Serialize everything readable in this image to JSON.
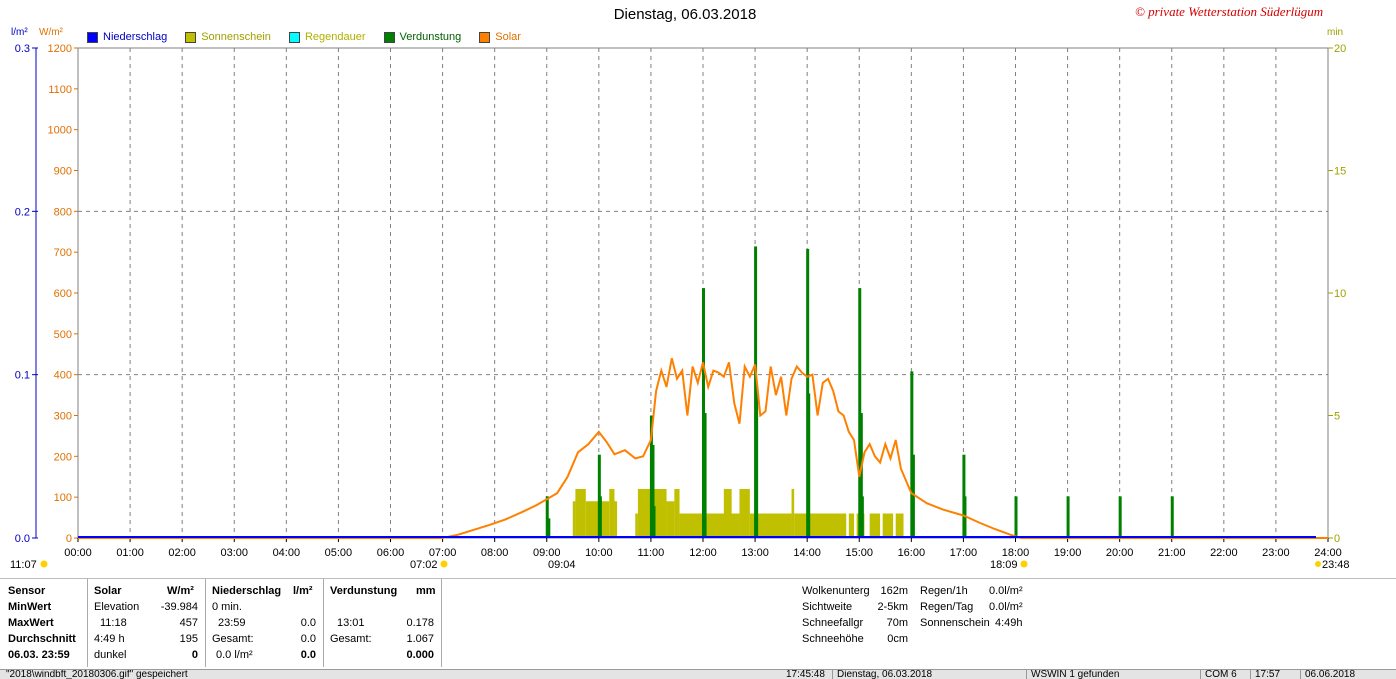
{
  "header": {
    "title": "Dienstag, 06.03.2018",
    "copyright": "© private Wetterstation Süderlügum",
    "unit_precip": "l/m²",
    "unit_solar": "W/m²",
    "unit_min": "min"
  },
  "legend": [
    {
      "label": "Niederschlag",
      "color": "#0000ff"
    },
    {
      "label": "Sonnenschein",
      "color": "#c0c000"
    },
    {
      "label": "Regendauer",
      "color": "#00ffff"
    },
    {
      "label": "Verdunstung",
      "color": "#008000"
    },
    {
      "label": "Solar",
      "color": "#ff8000"
    }
  ],
  "colors": {
    "solar": "#ff8000",
    "sun": "#c0c000",
    "evap": "#008000",
    "precip": "#0000ff",
    "grid": "#808080"
  },
  "chart_data": {
    "type": "bar",
    "x_labels": [
      "00:00",
      "01:00",
      "02:00",
      "03:00",
      "04:00",
      "05:00",
      "06:00",
      "07:00",
      "08:00",
      "09:00",
      "10:00",
      "11:00",
      "12:00",
      "13:00",
      "14:00",
      "15:00",
      "16:00",
      "17:00",
      "18:00",
      "19:00",
      "20:00",
      "21:00",
      "22:00",
      "23:00",
      "24:00"
    ],
    "xlim_hours": [
      0,
      24
    ],
    "axes": {
      "precip": {
        "ticks": [
          "0.0",
          "0.1",
          "0.2",
          "0.3"
        ],
        "ylim": [
          0,
          0.3
        ]
      },
      "solar": {
        "ticks": [
          "0",
          "100",
          "200",
          "300",
          "400",
          "500",
          "600",
          "700",
          "800",
          "900",
          "1000",
          "1100",
          "1200"
        ],
        "ylim": [
          0,
          1200
        ]
      },
      "minutes": {
        "ticks": [
          "0",
          "5",
          "10",
          "15",
          "20"
        ],
        "ylim": [
          0,
          20
        ]
      }
    },
    "markers": {
      "moon_left": "11:07",
      "sunrise": "07:02",
      "noon": "09:04",
      "sunset": "18:09",
      "moon_right": "23:48"
    },
    "solar_series": {
      "name": "Solar",
      "points": [
        [
          0,
          0
        ],
        [
          7.0,
          0
        ],
        [
          7.3,
          8
        ],
        [
          7.6,
          20
        ],
        [
          7.9,
          32
        ],
        [
          8.2,
          45
        ],
        [
          8.5,
          62
        ],
        [
          8.8,
          80
        ],
        [
          9.0,
          95
        ],
        [
          9.2,
          110
        ],
        [
          9.4,
          150
        ],
        [
          9.6,
          210
        ],
        [
          9.8,
          230
        ],
        [
          10.0,
          260
        ],
        [
          10.15,
          235
        ],
        [
          10.3,
          205
        ],
        [
          10.5,
          215
        ],
        [
          10.7,
          195
        ],
        [
          10.85,
          200
        ],
        [
          11.0,
          240
        ],
        [
          11.1,
          360
        ],
        [
          11.2,
          410
        ],
        [
          11.3,
          370
        ],
        [
          11.4,
          440
        ],
        [
          11.5,
          390
        ],
        [
          11.6,
          410
        ],
        [
          11.7,
          300
        ],
        [
          11.8,
          420
        ],
        [
          11.9,
          380
        ],
        [
          12.0,
          430
        ],
        [
          12.1,
          370
        ],
        [
          12.2,
          410
        ],
        [
          12.3,
          405
        ],
        [
          12.4,
          395
        ],
        [
          12.5,
          430
        ],
        [
          12.6,
          330
        ],
        [
          12.7,
          280
        ],
        [
          12.8,
          420
        ],
        [
          12.9,
          395
        ],
        [
          13.0,
          425
        ],
        [
          13.1,
          300
        ],
        [
          13.2,
          310
        ],
        [
          13.3,
          420
        ],
        [
          13.4,
          350
        ],
        [
          13.5,
          395
        ],
        [
          13.6,
          300
        ],
        [
          13.7,
          390
        ],
        [
          13.8,
          420
        ],
        [
          13.9,
          405
        ],
        [
          14.0,
          395
        ],
        [
          14.1,
          400
        ],
        [
          14.2,
          300
        ],
        [
          14.3,
          380
        ],
        [
          14.4,
          390
        ],
        [
          14.5,
          360
        ],
        [
          14.6,
          310
        ],
        [
          14.7,
          300
        ],
        [
          14.8,
          260
        ],
        [
          14.9,
          240
        ],
        [
          15.0,
          150
        ],
        [
          15.1,
          210
        ],
        [
          15.2,
          230
        ],
        [
          15.3,
          200
        ],
        [
          15.4,
          185
        ],
        [
          15.5,
          230
        ],
        [
          15.6,
          195
        ],
        [
          15.7,
          240
        ],
        [
          15.8,
          170
        ],
        [
          16.0,
          110
        ],
        [
          16.3,
          85
        ],
        [
          16.6,
          70
        ],
        [
          17.0,
          55
        ],
        [
          17.3,
          38
        ],
        [
          17.6,
          22
        ],
        [
          17.9,
          8
        ],
        [
          18.1,
          0
        ],
        [
          24,
          0
        ]
      ]
    },
    "sunshine_blocks": [
      [
        9.5,
        9.55,
        1.5
      ],
      [
        9.55,
        9.75,
        2.0
      ],
      [
        9.75,
        10.2,
        1.5
      ],
      [
        10.2,
        10.3,
        2.0
      ],
      [
        10.3,
        10.35,
        1.5
      ],
      [
        10.7,
        10.75,
        1.0
      ],
      [
        10.75,
        11.3,
        2.0
      ],
      [
        11.3,
        11.45,
        1.5
      ],
      [
        11.45,
        11.55,
        2.0
      ],
      [
        11.55,
        12.7,
        1.0
      ],
      [
        12.4,
        12.55,
        2.0
      ],
      [
        12.7,
        12.9,
        2.0
      ],
      [
        12.9,
        13.7,
        1.0
      ],
      [
        13.7,
        13.75,
        2.0
      ],
      [
        13.75,
        14.75,
        1.0
      ],
      [
        14.8,
        14.9,
        1.0
      ],
      [
        14.95,
        15.1,
        1.0
      ],
      [
        15.2,
        15.4,
        1.0
      ],
      [
        15.45,
        15.65,
        1.0
      ],
      [
        15.7,
        15.85,
        1.0
      ]
    ],
    "evaporation_bars": [
      [
        9.0,
        1.7
      ],
      [
        9.03,
        0.8
      ],
      [
        10.0,
        3.4
      ],
      [
        10.02,
        1.7
      ],
      [
        11.0,
        5.0
      ],
      [
        11.03,
        3.8
      ],
      [
        11.05,
        1.3
      ],
      [
        12.0,
        10.2
      ],
      [
        12.03,
        5.1
      ],
      [
        13.0,
        11.9
      ],
      [
        13.02,
        5.9
      ],
      [
        14.0,
        11.8
      ],
      [
        14.02,
        5.9
      ],
      [
        15.0,
        10.2
      ],
      [
        15.03,
        5.1
      ],
      [
        15.05,
        1.7
      ],
      [
        16.0,
        6.8
      ],
      [
        16.03,
        3.4
      ],
      [
        17.0,
        3.4
      ],
      [
        17.02,
        1.7
      ],
      [
        18.0,
        1.7
      ],
      [
        19.0,
        1.7
      ],
      [
        20.0,
        1.7
      ],
      [
        21.0,
        1.7
      ]
    ]
  },
  "panel": {
    "col1": {
      "h": "Sensor",
      "r1": "MinWert",
      "r2": "MaxWert",
      "r3": "Durchschnitt",
      "r4": "06.03. 23:59"
    },
    "solar": {
      "h": "Solar",
      "unit": "W/m²",
      "r1a": "Elevation",
      "r1b": "-39.984",
      "r2a": "11:18",
      "r2b": "457",
      "r3a": "4:49 h",
      "r3b": "195",
      "r4a": "dunkel",
      "r4b": "0"
    },
    "precip": {
      "h": "Niederschlag",
      "unit": "l/m²",
      "r1a": "0 min.",
      "r2a": "23:59",
      "r2b": "0.0",
      "r3a": "Gesamt:",
      "r3b": "0.0",
      "r4a": "0.0 l/m²",
      "r4b": "0.0"
    },
    "evap": {
      "h": "Verdunstung",
      "unit": "mm",
      "r2a": "13:01",
      "r2b": "0.178",
      "r3a": "Gesamt:",
      "r3b": "1.067",
      "r4b": "0.000"
    },
    "weather": [
      {
        "label": "Wolkenunterg",
        "value": "162m"
      },
      {
        "label": "Sichtweite",
        "value": "2-5km"
      },
      {
        "label": "Schneefallgr",
        "value": "70m"
      },
      {
        "label": "Schneehöhe",
        "value": "0cm"
      }
    ],
    "rain": [
      {
        "label": "Regen/1h",
        "value": "0.0l/m²"
      },
      {
        "label": "Regen/Tag",
        "value": "0.0l/m²"
      },
      {
        "label": "Sonnenschein",
        "value": "4:49h"
      }
    ]
  },
  "statusbar": {
    "file": "\"2018\\windbft_20180306.gif\" gespeichert",
    "time1": "17:45:48",
    "date1": "Dienstag, 06.03.2018",
    "info": "WSWIN 1 gefunden",
    "port": "COM 6",
    "time2": "17:57",
    "date2": "06.06.2018"
  }
}
